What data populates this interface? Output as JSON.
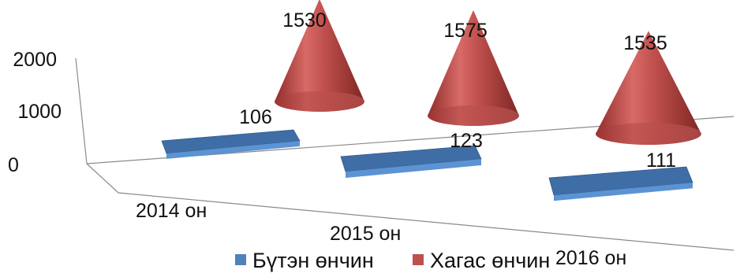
{
  "chart_data": {
    "type": "bar",
    "style": "3d-cone-and-flat-bar",
    "categories": [
      "2014 он",
      "2015 он",
      "2016 он"
    ],
    "series": [
      {
        "name": "Бүтэн өнчин",
        "values": [
          106,
          123,
          111
        ],
        "color": "#4F81BD"
      },
      {
        "name": "Хагас өнчин",
        "values": [
          1530,
          1575,
          1535
        ],
        "color": "#C0504D"
      }
    ],
    "y_ticks": [
      "0",
      "1000",
      "2000"
    ],
    "ylim": [
      0,
      2000
    ],
    "legend_position": "bottom",
    "grid": false
  }
}
